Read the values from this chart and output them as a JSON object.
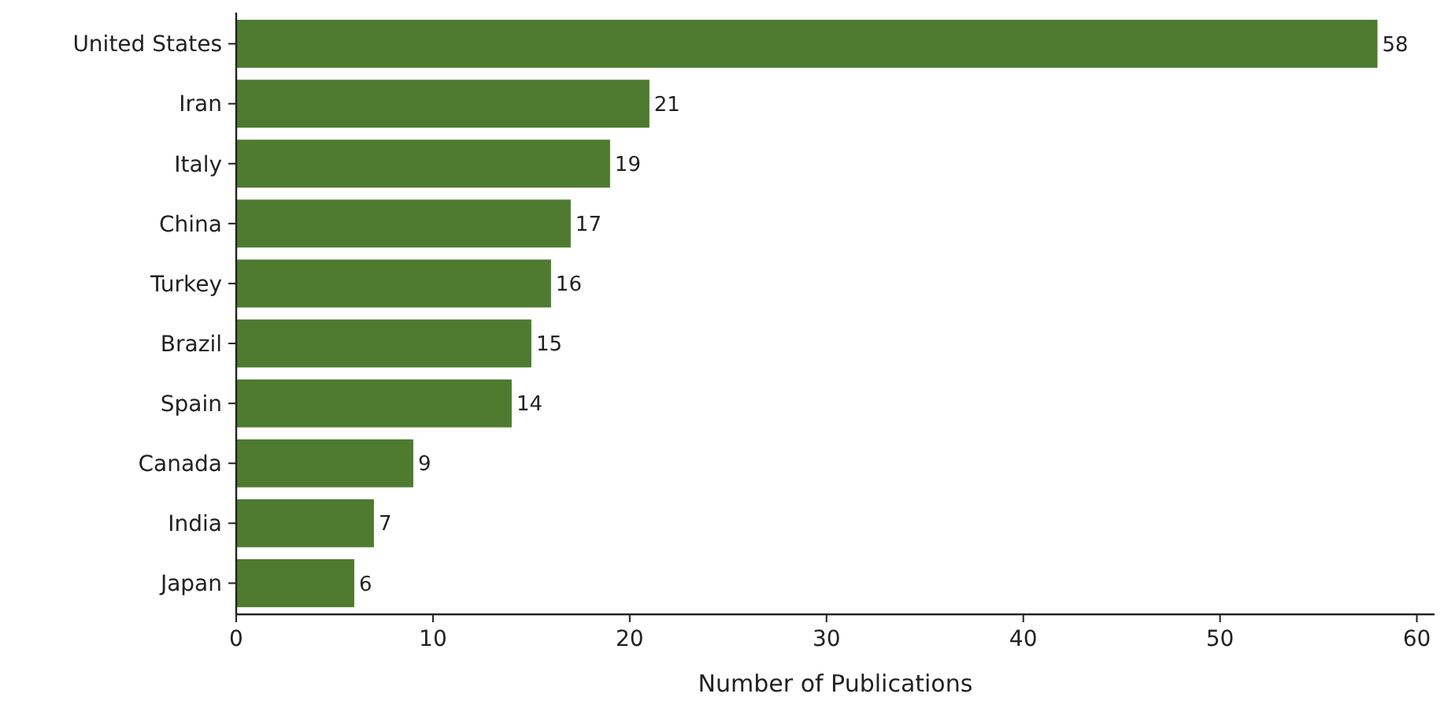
{
  "chart_data": {
    "type": "bar",
    "orientation": "horizontal",
    "xlabel": "Number of Publications",
    "categories": [
      "United States",
      "Iran",
      "Italy",
      "China",
      "Turkey",
      "Brazil",
      "Spain",
      "Canada",
      "India",
      "Japan"
    ],
    "values": [
      58,
      21,
      19,
      17,
      16,
      15,
      14,
      9,
      7,
      6
    ],
    "color": "#4e7b2f",
    "xlim": [
      0,
      60.9
    ],
    "xticks": [
      0,
      10,
      20,
      30,
      40,
      50,
      60
    ],
    "data_labels": true
  }
}
